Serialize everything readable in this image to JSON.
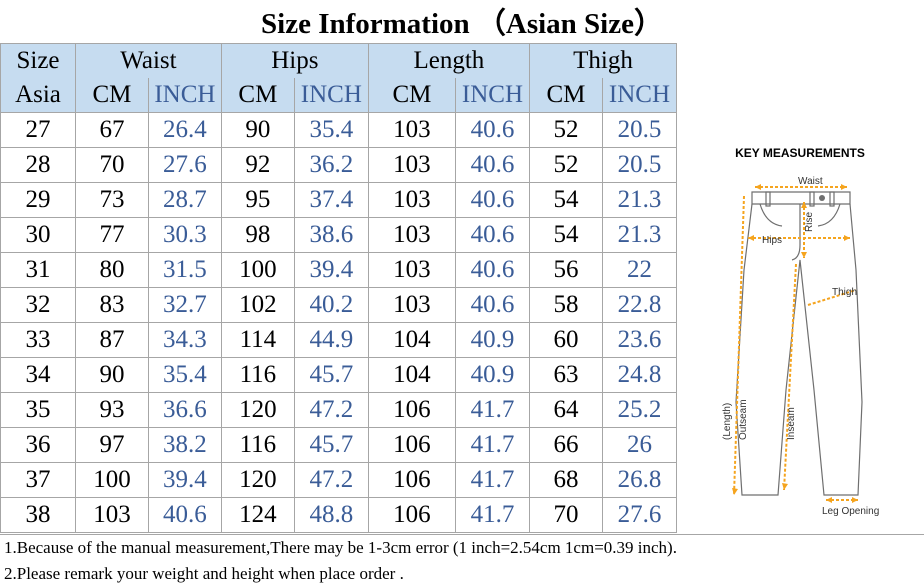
{
  "title": "Size Information （Asian Size）",
  "table": {
    "header_top": {
      "size": "Size",
      "waist": "Waist",
      "hips": "Hips",
      "length": "Length",
      "thigh": "Thigh"
    },
    "header_bottom": {
      "asia": "Asia",
      "cm": "CM",
      "inch": "INCH"
    },
    "rows": [
      [
        "27",
        "67",
        "26.4",
        "90",
        "35.4",
        "103",
        "40.6",
        "52",
        "20.5"
      ],
      [
        "28",
        "70",
        "27.6",
        "92",
        "36.2",
        "103",
        "40.6",
        "52",
        "20.5"
      ],
      [
        "29",
        "73",
        "28.7",
        "95",
        "37.4",
        "103",
        "40.6",
        "54",
        "21.3"
      ],
      [
        "30",
        "77",
        "30.3",
        "98",
        "38.6",
        "103",
        "40.6",
        "54",
        "21.3"
      ],
      [
        "31",
        "80",
        "31.5",
        "100",
        "39.4",
        "103",
        "40.6",
        "56",
        "22"
      ],
      [
        "32",
        "83",
        "32.7",
        "102",
        "40.2",
        "103",
        "40.6",
        "58",
        "22.8"
      ],
      [
        "33",
        "87",
        "34.3",
        "114",
        "44.9",
        "104",
        "40.9",
        "60",
        "23.6"
      ],
      [
        "34",
        "90",
        "35.4",
        "116",
        "45.7",
        "104",
        "40.9",
        "63",
        "24.8"
      ],
      [
        "35",
        "93",
        "36.6",
        "120",
        "47.2",
        "106",
        "41.7",
        "64",
        "25.2"
      ],
      [
        "36",
        "97",
        "38.2",
        "116",
        "45.7",
        "106",
        "41.7",
        "66",
        "26"
      ],
      [
        "37",
        "100",
        "39.4",
        "120",
        "47.2",
        "106",
        "41.7",
        "68",
        "26.8"
      ],
      [
        "38",
        "103",
        "40.6",
        "124",
        "48.8",
        "106",
        "41.7",
        "70",
        "27.6"
      ]
    ]
  },
  "diagram": {
    "title": "KEY MEASUREMENTS",
    "labels": {
      "waist": "Waist",
      "rise": "Rise",
      "hips": "Hips",
      "thigh": "Thigh",
      "length": "(Length)",
      "outseam": "Outseam",
      "inseam": "Inseam",
      "leg_opening": "Leg Opening"
    }
  },
  "notes": [
    "1.Because of the manual measurement,There may be 1-3cm error (1 inch=2.54cm 1cm=0.39 inch).",
    "2.Please remark your weight and height when place order ."
  ],
  "colors": {
    "header_bg": "#c6dcf0",
    "inch_text": "#3a5c97",
    "diagram_accent": "#f5a41e",
    "grid": "#a6a6a6"
  }
}
